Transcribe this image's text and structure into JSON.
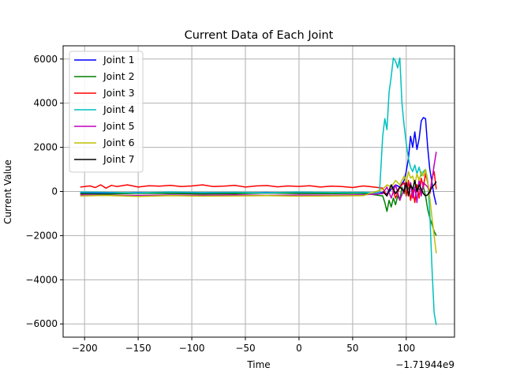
{
  "chart_data": {
    "type": "line",
    "title": "Current Data of Each Joint",
    "xlabel": "Time",
    "ylabel": "Current Value",
    "x_offset_label": "−1.71944e9",
    "xlim": [
      -220,
      145
    ],
    "ylim": [
      -6600,
      6600
    ],
    "xticks": [
      -200,
      -150,
      -100,
      -50,
      0,
      50,
      100
    ],
    "xtick_labels": [
      "−200",
      "−150",
      "−100",
      "−50",
      "0",
      "50",
      "100"
    ],
    "yticks": [
      -6000,
      -4000,
      -2000,
      0,
      2000,
      4000,
      6000
    ],
    "ytick_labels": [
      "−6000",
      "−4000",
      "−2000",
      "0",
      "2000",
      "4000",
      "6000"
    ],
    "grid": true,
    "legend_position": "upper-left",
    "series": [
      {
        "name": "Joint 1",
        "color": "#0000ff",
        "x": [
          -204,
          -180,
          -150,
          -120,
          -90,
          -60,
          -30,
          0,
          30,
          60,
          78,
          82,
          86,
          90,
          94,
          98,
          100,
          102,
          104,
          106,
          108,
          110,
          112,
          114,
          116,
          118,
          120,
          122,
          124,
          126,
          128
        ],
        "y": [
          -60,
          -80,
          -50,
          -90,
          -60,
          -70,
          -50,
          -80,
          -60,
          -90,
          -50,
          -100,
          100,
          300,
          200,
          500,
          900,
          1500,
          2500,
          2000,
          2700,
          1900,
          2400,
          3200,
          3350,
          3300,
          2000,
          1000,
          400,
          -200,
          -600
        ]
      },
      {
        "name": "Joint 2",
        "color": "#008000",
        "x": [
          -204,
          -180,
          -150,
          -120,
          -90,
          -60,
          -30,
          0,
          30,
          60,
          78,
          80,
          82,
          84,
          86,
          88,
          90,
          92,
          94,
          96,
          98,
          100,
          102,
          104,
          106,
          108,
          110,
          112,
          114,
          116,
          118,
          120,
          122,
          124,
          126,
          128
        ],
        "y": [
          -100,
          -120,
          -80,
          -90,
          -110,
          -100,
          -70,
          -90,
          -100,
          -80,
          -200,
          -500,
          -900,
          -400,
          -700,
          -300,
          -600,
          -200,
          -400,
          200,
          -100,
          300,
          100,
          400,
          -100,
          200,
          300,
          100,
          0,
          200,
          -200,
          -800,
          -1200,
          -1500,
          -1800,
          -2000
        ]
      },
      {
        "name": "Joint 3",
        "color": "#ff0000",
        "x": [
          -204,
          -195,
          -190,
          -185,
          -180,
          -175,
          -170,
          -160,
          -150,
          -140,
          -130,
          -120,
          -110,
          -100,
          -90,
          -80,
          -70,
          -60,
          -50,
          -40,
          -30,
          -20,
          -10,
          0,
          10,
          20,
          30,
          40,
          50,
          60,
          70,
          78,
          82,
          86,
          90,
          94,
          98,
          100,
          102,
          104,
          106,
          108,
          110,
          112,
          114,
          116,
          118,
          120,
          122,
          124,
          126,
          128
        ],
        "y": [
          200,
          250,
          180,
          300,
          150,
          280,
          220,
          300,
          200,
          260,
          240,
          280,
          220,
          250,
          300,
          220,
          240,
          280,
          200,
          250,
          270,
          210,
          250,
          230,
          260,
          200,
          240,
          220,
          180,
          250,
          200,
          150,
          -200,
          300,
          -300,
          200,
          400,
          -200,
          500,
          -400,
          100,
          -500,
          300,
          -300,
          600,
          200,
          800,
          400,
          -100,
          600,
          900,
          100
        ]
      },
      {
        "name": "Joint 4",
        "color": "#00bfbf",
        "x": [
          -204,
          -180,
          -150,
          -120,
          -90,
          -60,
          -30,
          0,
          30,
          60,
          75,
          78,
          80,
          82,
          84,
          86,
          88,
          90,
          92,
          94,
          96,
          98,
          100,
          102,
          104,
          106,
          108,
          110,
          112,
          114,
          116,
          118,
          120,
          122,
          124,
          126,
          128
        ],
        "y": [
          -30,
          -40,
          -60,
          -30,
          -50,
          -40,
          -60,
          -30,
          -50,
          -40,
          -80,
          2500,
          3300,
          2800,
          4500,
          5200,
          6050,
          5900,
          5600,
          6050,
          4000,
          3000,
          2200,
          1500,
          1100,
          900,
          1200,
          800,
          1100,
          700,
          900,
          1000,
          500,
          -1000,
          -3500,
          -5500,
          -6050
        ]
      },
      {
        "name": "Joint 5",
        "color": "#bf00bf",
        "x": [
          -204,
          -180,
          -150,
          -120,
          -90,
          -60,
          -30,
          0,
          30,
          60,
          78,
          82,
          86,
          90,
          94,
          98,
          100,
          102,
          104,
          106,
          108,
          110,
          112,
          114,
          116,
          118,
          120,
          122,
          124,
          126,
          128
        ],
        "y": [
          -150,
          -170,
          -180,
          -160,
          -170,
          -150,
          -180,
          -160,
          -170,
          -150,
          -100,
          200,
          -300,
          300,
          -400,
          100,
          500,
          -200,
          400,
          -300,
          200,
          -500,
          600,
          -200,
          400,
          300,
          200,
          -100,
          500,
          1200,
          1800
        ]
      },
      {
        "name": "Joint 6",
        "color": "#bfbf00",
        "x": [
          -204,
          -180,
          -150,
          -120,
          -90,
          -60,
          -30,
          0,
          30,
          60,
          78,
          82,
          86,
          90,
          94,
          98,
          100,
          102,
          104,
          106,
          108,
          110,
          112,
          114,
          116,
          118,
          120,
          122,
          124,
          126,
          128
        ],
        "y": [
          -200,
          -180,
          -220,
          -190,
          -210,
          -200,
          -190,
          -210,
          -200,
          -190,
          100,
          300,
          200,
          500,
          300,
          700,
          400,
          900,
          600,
          700,
          300,
          800,
          500,
          900,
          700,
          1000,
          400,
          -300,
          -1200,
          -2000,
          -2800
        ]
      },
      {
        "name": "Joint 7",
        "color": "#000000",
        "x": [
          78,
          82,
          86,
          90,
          94,
          98,
          100,
          102,
          104,
          106,
          108,
          110,
          112,
          114,
          116,
          118,
          120,
          122,
          124,
          126,
          128
        ],
        "y": [
          0,
          -200,
          300,
          -100,
          200,
          0,
          400,
          -200,
          300,
          100,
          500,
          0,
          300,
          100,
          -100,
          -200,
          -150,
          0,
          200,
          300,
          450
        ]
      }
    ]
  }
}
